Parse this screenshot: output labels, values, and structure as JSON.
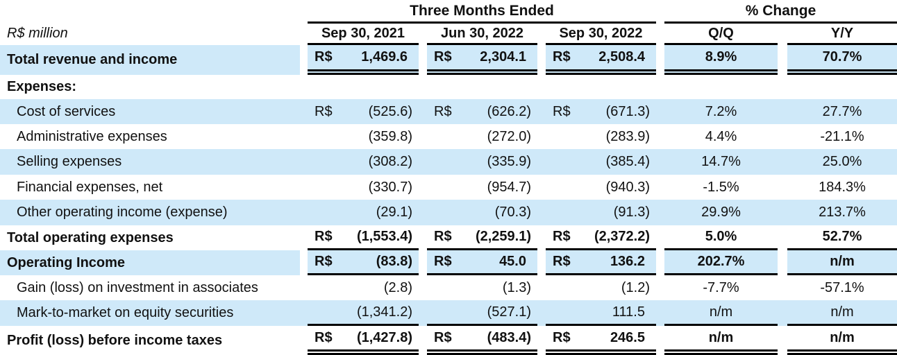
{
  "unit_label": "R$ million",
  "currency_symbol": "R$",
  "colors": {
    "row_highlight": "#cfe9f9",
    "rule": "#000000",
    "text": "#111111",
    "background": "#ffffff"
  },
  "header": {
    "period_group": "Three Months Ended",
    "change_group": "% Change",
    "period_columns": [
      "Sep 30, 2021",
      "Jun 30, 2022",
      "Sep 30, 2022"
    ],
    "change_columns": [
      "Q/Q",
      "Y/Y"
    ]
  },
  "table": {
    "rows": [
      {
        "label": "Total revenue and income",
        "bold": true,
        "indent": false,
        "highlight": true,
        "segmented": true,
        "currency": true,
        "values": [
          "1,469.6",
          "2,304.1",
          "2,508.4"
        ],
        "changes": [
          "8.9%",
          "70.7%"
        ],
        "underline": "double"
      },
      {
        "label": "Expenses:",
        "bold": true,
        "indent": false,
        "highlight": false,
        "segmented": false,
        "currency": false,
        "values": [
          "",
          "",
          ""
        ],
        "changes": [
          "",
          ""
        ],
        "underline": "none"
      },
      {
        "label": "Cost of services",
        "bold": false,
        "indent": true,
        "highlight": true,
        "segmented": false,
        "currency": true,
        "values": [
          "(525.6)",
          "(626.2)",
          "(671.3)"
        ],
        "changes": [
          "7.2%",
          "27.7%"
        ],
        "underline": "none"
      },
      {
        "label": "Administrative expenses",
        "bold": false,
        "indent": true,
        "highlight": false,
        "segmented": false,
        "currency": false,
        "values": [
          "(359.8)",
          "(272.0)",
          "(283.9)"
        ],
        "changes": [
          "4.4%",
          "-21.1%"
        ],
        "underline": "none"
      },
      {
        "label": "Selling expenses",
        "bold": false,
        "indent": true,
        "highlight": true,
        "segmented": false,
        "currency": false,
        "values": [
          "(308.2)",
          "(335.9)",
          "(385.4)"
        ],
        "changes": [
          "14.7%",
          "25.0%"
        ],
        "underline": "none"
      },
      {
        "label": "Financial expenses, net",
        "bold": false,
        "indent": true,
        "highlight": false,
        "segmented": false,
        "currency": false,
        "values": [
          "(330.7)",
          "(954.7)",
          "(940.3)"
        ],
        "changes": [
          "-1.5%",
          "184.3%"
        ],
        "underline": "none"
      },
      {
        "label": "Other operating income (expense)",
        "bold": false,
        "indent": true,
        "highlight": true,
        "segmented": false,
        "currency": false,
        "values": [
          "(29.1)",
          "(70.3)",
          "(91.3)"
        ],
        "changes": [
          "29.9%",
          "213.7%"
        ],
        "underline": "none"
      },
      {
        "label": "Total operating expenses",
        "bold": true,
        "indent": false,
        "highlight": false,
        "segmented": false,
        "currency": true,
        "values": [
          "(1,553.4)",
          "(2,259.1)",
          "(2,372.2)"
        ],
        "changes": [
          "5.0%",
          "52.7%"
        ],
        "underline": "single"
      },
      {
        "label": "Operating Income",
        "bold": true,
        "indent": false,
        "highlight": true,
        "segmented": true,
        "currency": true,
        "values": [
          "(83.8)",
          "45.0",
          "136.2"
        ],
        "changes": [
          "202.7%",
          "n/m"
        ],
        "underline": "single"
      },
      {
        "label": "Gain (loss) on investment in associates",
        "bold": false,
        "indent": true,
        "highlight": false,
        "segmented": false,
        "currency": false,
        "values": [
          "(2.8)",
          "(1.3)",
          "(1.2)"
        ],
        "changes": [
          "-7.7%",
          "-57.1%"
        ],
        "underline": "none"
      },
      {
        "label": "Mark-to-market on equity securities",
        "bold": false,
        "indent": true,
        "highlight": true,
        "segmented": false,
        "currency": false,
        "values": [
          "(1,341.2)",
          "(527.1)",
          "111.5"
        ],
        "changes": [
          "n/m",
          "n/m"
        ],
        "underline": "single"
      },
      {
        "label": "Profit (loss) before income taxes",
        "bold": true,
        "indent": false,
        "highlight": false,
        "segmented": false,
        "currency": true,
        "values": [
          "(1,427.8)",
          "(483.4)",
          "246.5"
        ],
        "changes": [
          "n/m",
          "n/m"
        ],
        "underline": "double"
      }
    ]
  }
}
